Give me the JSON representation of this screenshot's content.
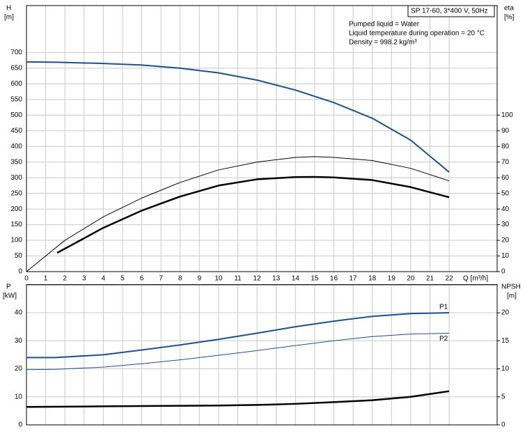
{
  "chart_data": [
    {
      "type": "line",
      "title": "SP 17-60, 3*400 V, 50Hz",
      "annotations": [
        "Pumped liquid = Water",
        "Liquid temperature during operation = 20 °C",
        "Density = 998.2 kg/m³"
      ],
      "y_label": "H",
      "y_unit": "[m]",
      "y2_label": "eta",
      "y2_unit": "[%]",
      "x_label": "Q [m³/h]",
      "xlim": [
        0,
        24.5
      ],
      "xticks": [
        0,
        1,
        2,
        3,
        4,
        5,
        6,
        7,
        8,
        9,
        10,
        11,
        12,
        13,
        14,
        15,
        16,
        17,
        18,
        19,
        20,
        21,
        22
      ],
      "ylim": [
        0,
        850
      ],
      "yticks": [
        0,
        50,
        100,
        150,
        200,
        250,
        300,
        350,
        400,
        450,
        500,
        550,
        600,
        650,
        700
      ],
      "y2lim": [
        0,
        170
      ],
      "y2ticks": [
        0,
        10,
        20,
        30,
        40,
        50,
        60,
        70,
        80,
        90,
        100
      ],
      "grid": true,
      "series": [
        {
          "color": "#1f4e8c",
          "x": [
            0,
            1.6,
            4,
            6,
            8,
            10,
            12,
            14,
            16,
            18,
            20,
            22
          ],
          "values": [
            670,
            669,
            665,
            660,
            650,
            635,
            612,
            580,
            540,
            490,
            420,
            318
          ]
        },
        {
          "color": "#000000",
          "axis": "y2",
          "x": [
            0,
            2,
            4,
            6,
            8,
            10,
            12,
            14,
            15,
            16,
            18,
            20,
            22
          ],
          "values": [
            0,
            20,
            35,
            47,
            57,
            65,
            70,
            73,
            73.5,
            73,
            71,
            66,
            58
          ]
        },
        {
          "color": "#000000",
          "axis": "y2",
          "x": [
            1.6,
            4,
            6,
            8,
            10,
            12,
            14,
            15,
            16,
            18,
            20,
            22
          ],
          "values": [
            12,
            28,
            39,
            48,
            55,
            59,
            60.4,
            60.5,
            60.2,
            58.5,
            54,
            47.5
          ]
        }
      ]
    },
    {
      "type": "line",
      "y_label": "P",
      "y_unit": "[kW]",
      "y2_label": "NPSH",
      "y2_unit": "[m]",
      "xlim": [
        0,
        24.5
      ],
      "xticks": [
        0,
        1,
        2,
        3,
        4,
        5,
        6,
        7,
        8,
        9,
        10,
        11,
        12,
        13,
        14,
        15,
        16,
        17,
        18,
        19,
        20,
        21,
        22
      ],
      "ylim": [
        0,
        50
      ],
      "yticks": [
        0,
        10,
        20,
        30,
        40
      ],
      "y2lim": [
        0,
        25
      ],
      "y2ticks": [
        0,
        5,
        10,
        15,
        20
      ],
      "grid": true,
      "series": [
        {
          "name": "P1",
          "color": "#1f4e8c",
          "x": [
            0,
            1.5,
            4,
            6,
            8,
            10,
            12,
            14,
            16,
            18,
            20,
            22
          ],
          "values": [
            24,
            24,
            25,
            26.7,
            28.5,
            30.5,
            32.7,
            35,
            37,
            38.7,
            39.7,
            40
          ]
        },
        {
          "name": "P2",
          "color": "#1f4e8c",
          "x": [
            0,
            1.5,
            4,
            6,
            8,
            10,
            12,
            14,
            16,
            18,
            20,
            22
          ],
          "values": [
            19.7,
            19.8,
            20.6,
            21.8,
            23.2,
            24.8,
            26.5,
            28.3,
            30,
            31.5,
            32.4,
            32.7
          ]
        },
        {
          "color": "#000000",
          "axis": "y2",
          "x": [
            0,
            4,
            8,
            10,
            12,
            14,
            16,
            18,
            20,
            22
          ],
          "values": [
            3.2,
            3.3,
            3.4,
            3.45,
            3.55,
            3.75,
            4.05,
            4.4,
            5,
            6
          ]
        }
      ]
    }
  ]
}
